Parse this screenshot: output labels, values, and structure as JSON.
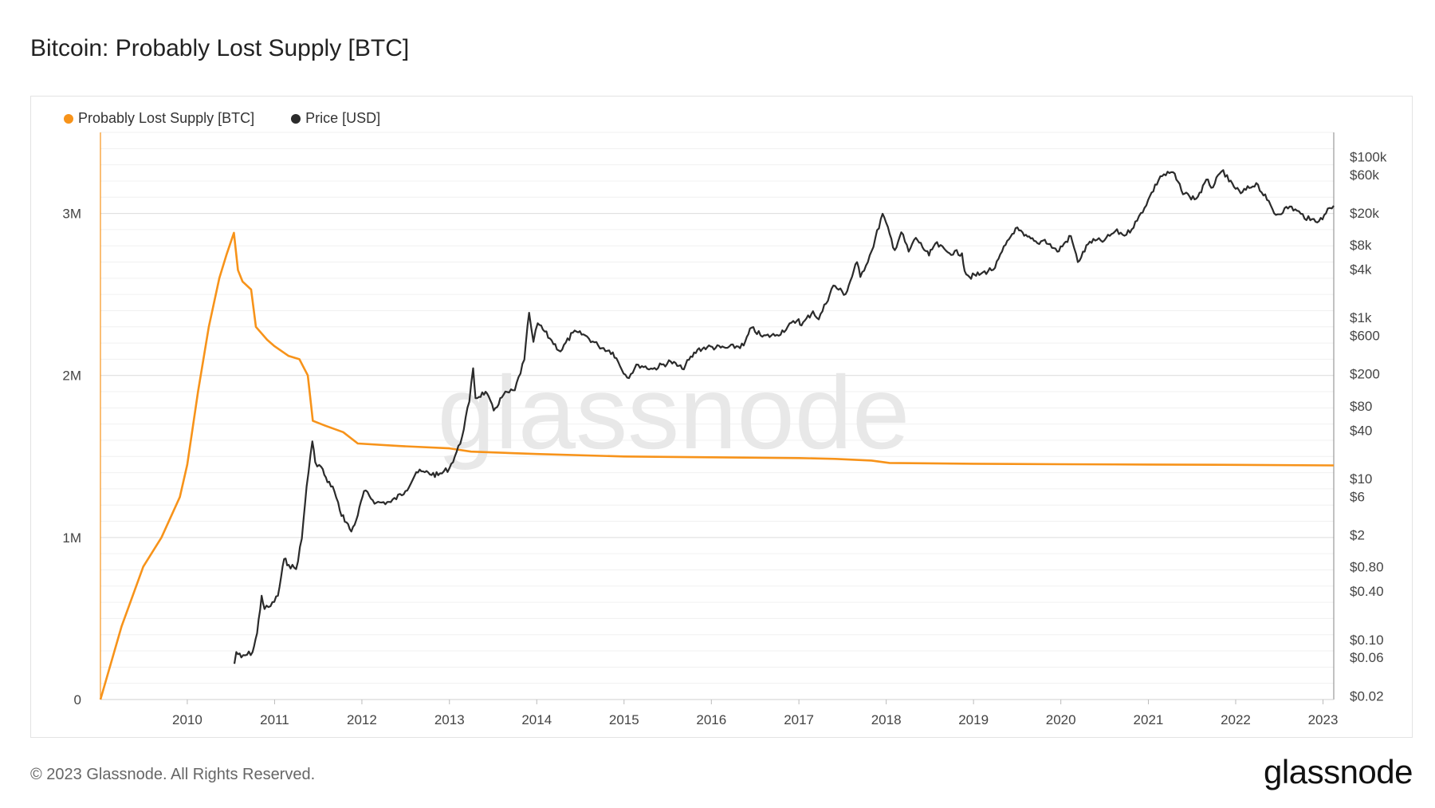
{
  "page": {
    "title": "Bitcoin: Probably Lost Supply [BTC]",
    "copyright": "© 2023 Glassnode. All Rights Reserved.",
    "brand": "glassnode",
    "watermark": "glassnode"
  },
  "colors": {
    "lost_supply": "#f7931a",
    "price": "#2b2b2b",
    "grid": "#e6e6e6",
    "axis_text": "#444444",
    "watermark": "#e8e8e8"
  },
  "chart_data": {
    "type": "line",
    "title": "Bitcoin: Probably Lost Supply [BTC]",
    "xlabel": "",
    "x_ticks": [
      "2010",
      "2011",
      "2012",
      "2013",
      "2014",
      "2015",
      "2016",
      "2017",
      "2018",
      "2019",
      "2020",
      "2021",
      "2022",
      "2023"
    ],
    "xlim": [
      "2009-01-03",
      "2023-02-15"
    ],
    "y_left": {
      "ticks": [
        0,
        1000000,
        2000000,
        3000000
      ],
      "tick_labels": [
        "0",
        "1M",
        "2M",
        "3M"
      ],
      "ylim": [
        0,
        3500000
      ]
    },
    "y_right": {
      "scale": "log",
      "ticks": [
        0.02,
        0.06,
        0.1,
        0.4,
        0.8,
        2,
        6,
        10,
        40,
        80,
        200,
        600,
        1000,
        4000,
        8000,
        20000,
        60000,
        100000
      ],
      "tick_labels": [
        "$0.02",
        "$0.06",
        "$0.10",
        "$0.40",
        "$0.80",
        "$2",
        "$6",
        "$10",
        "$40",
        "$80",
        "$200",
        "$600",
        "$1k",
        "$4k",
        "$8k",
        "$20k",
        "$60k",
        "$100k"
      ],
      "ylim": [
        0.018,
        200000
      ]
    },
    "legend": {
      "placement": "top-left"
    },
    "grid": true,
    "series": [
      {
        "name": "Probably Lost Supply [BTC]",
        "axis": "left",
        "points": [
          [
            "2009-01-03",
            0
          ],
          [
            "2009-04-01",
            450000
          ],
          [
            "2009-07-01",
            820000
          ],
          [
            "2009-09-15",
            1000000
          ],
          [
            "2009-12-01",
            1250000
          ],
          [
            "2010-01-01",
            1450000
          ],
          [
            "2010-02-15",
            1900000
          ],
          [
            "2010-04-01",
            2300000
          ],
          [
            "2010-05-15",
            2600000
          ],
          [
            "2010-06-15",
            2750000
          ],
          [
            "2010-07-15",
            2880000
          ],
          [
            "2010-08-01",
            2650000
          ],
          [
            "2010-08-20",
            2580000
          ],
          [
            "2010-09-25",
            2530000
          ],
          [
            "2010-10-15",
            2300000
          ],
          [
            "2010-12-01",
            2220000
          ],
          [
            "2011-01-01",
            2180000
          ],
          [
            "2011-03-01",
            2120000
          ],
          [
            "2011-04-15",
            2100000
          ],
          [
            "2011-05-20",
            2000000
          ],
          [
            "2011-06-10",
            1720000
          ],
          [
            "2011-08-01",
            1690000
          ],
          [
            "2011-10-15",
            1650000
          ],
          [
            "2011-12-15",
            1580000
          ],
          [
            "2012-06-01",
            1565000
          ],
          [
            "2013-01-01",
            1550000
          ],
          [
            "2013-04-01",
            1530000
          ],
          [
            "2014-01-01",
            1515000
          ],
          [
            "2015-01-01",
            1500000
          ],
          [
            "2016-01-01",
            1495000
          ],
          [
            "2017-01-01",
            1490000
          ],
          [
            "2017-06-01",
            1485000
          ],
          [
            "2017-11-01",
            1475000
          ],
          [
            "2018-01-15",
            1460000
          ],
          [
            "2019-01-01",
            1455000
          ],
          [
            "2020-01-01",
            1452000
          ],
          [
            "2021-01-01",
            1450000
          ],
          [
            "2022-01-01",
            1448000
          ],
          [
            "2023-02-15",
            1445000
          ]
        ]
      },
      {
        "name": "Price [USD]",
        "axis": "right",
        "points": [
          [
            "2010-07-17",
            0.05
          ],
          [
            "2010-07-25",
            0.07
          ],
          [
            "2010-08-15",
            0.06
          ],
          [
            "2010-10-01",
            0.07
          ],
          [
            "2010-10-20",
            0.12
          ],
          [
            "2010-11-08",
            0.35
          ],
          [
            "2010-11-20",
            0.24
          ],
          [
            "2010-12-15",
            0.26
          ],
          [
            "2011-01-15",
            0.35
          ],
          [
            "2011-02-10",
            1.0
          ],
          [
            "2011-03-01",
            0.85
          ],
          [
            "2011-04-01",
            0.75
          ],
          [
            "2011-04-25",
            1.8
          ],
          [
            "2011-05-15",
            8
          ],
          [
            "2011-06-08",
            29
          ],
          [
            "2011-06-20",
            16
          ],
          [
            "2011-07-15",
            14
          ],
          [
            "2011-08-10",
            9
          ],
          [
            "2011-09-01",
            8
          ],
          [
            "2011-10-01",
            4
          ],
          [
            "2011-11-18",
            2.2
          ],
          [
            "2011-12-15",
            3.5
          ],
          [
            "2012-01-10",
            7
          ],
          [
            "2012-03-01",
            5
          ],
          [
            "2012-05-01",
            5.1
          ],
          [
            "2012-07-01",
            7
          ],
          [
            "2012-08-15",
            12
          ],
          [
            "2012-09-20",
            12
          ],
          [
            "2012-11-15",
            11
          ],
          [
            "2013-01-01",
            13.5
          ],
          [
            "2013-02-15",
            27
          ],
          [
            "2013-03-25",
            90
          ],
          [
            "2013-04-10",
            235
          ],
          [
            "2013-04-20",
            100
          ],
          [
            "2013-06-01",
            120
          ],
          [
            "2013-07-05",
            70
          ],
          [
            "2013-08-15",
            110
          ],
          [
            "2013-10-01",
            125
          ],
          [
            "2013-11-10",
            300
          ],
          [
            "2013-11-30",
            1150
          ],
          [
            "2013-12-18",
            500
          ],
          [
            "2014-01-05",
            850
          ],
          [
            "2014-02-25",
            550
          ],
          [
            "2014-04-10",
            380
          ],
          [
            "2014-06-01",
            650
          ],
          [
            "2014-07-15",
            620
          ],
          [
            "2014-09-15",
            450
          ],
          [
            "2014-11-15",
            370
          ],
          [
            "2015-01-14",
            180
          ],
          [
            "2015-03-01",
            260
          ],
          [
            "2015-05-01",
            230
          ],
          [
            "2015-07-15",
            285
          ],
          [
            "2015-09-01",
            230
          ],
          [
            "2015-11-04",
            400
          ],
          [
            "2015-12-15",
            430
          ],
          [
            "2016-03-01",
            420
          ],
          [
            "2016-05-15",
            450
          ],
          [
            "2016-06-17",
            750
          ],
          [
            "2016-08-01",
            580
          ],
          [
            "2016-10-01",
            610
          ],
          [
            "2016-12-31",
            960
          ],
          [
            "2017-01-12",
            800
          ],
          [
            "2017-03-01",
            1200
          ],
          [
            "2017-03-25",
            950
          ],
          [
            "2017-05-25",
            2500
          ],
          [
            "2017-07-15",
            1950
          ],
          [
            "2017-09-01",
            4900
          ],
          [
            "2017-09-15",
            3200
          ],
          [
            "2017-11-01",
            6700
          ],
          [
            "2017-12-17",
            19500
          ],
          [
            "2018-02-06",
            6900
          ],
          [
            "2018-03-05",
            11500
          ],
          [
            "2018-04-05",
            6600
          ],
          [
            "2018-05-05",
            9800
          ],
          [
            "2018-06-29",
            5900
          ],
          [
            "2018-07-25",
            8300
          ],
          [
            "2018-09-15",
            6500
          ],
          [
            "2018-11-14",
            6300
          ],
          [
            "2018-11-25",
            3800
          ],
          [
            "2018-12-15",
            3200
          ],
          [
            "2019-02-01",
            3500
          ],
          [
            "2019-04-01",
            4150
          ],
          [
            "2019-05-15",
            8000
          ],
          [
            "2019-06-26",
            12900
          ],
          [
            "2019-08-01",
            10400
          ],
          [
            "2019-09-25",
            8400
          ],
          [
            "2019-10-26",
            9300
          ],
          [
            "2019-12-17",
            6600
          ],
          [
            "2020-02-12",
            10300
          ],
          [
            "2020-03-12",
            4900
          ],
          [
            "2020-05-01",
            8800
          ],
          [
            "2020-07-01",
            9100
          ],
          [
            "2020-08-15",
            11800
          ],
          [
            "2020-10-01",
            10700
          ],
          [
            "2020-11-15",
            16000
          ],
          [
            "2020-12-31",
            29000
          ],
          [
            "2021-02-20",
            57000
          ],
          [
            "2021-04-14",
            64000
          ],
          [
            "2021-05-19",
            38000
          ],
          [
            "2021-06-22",
            32000
          ],
          [
            "2021-07-20",
            30000
          ],
          [
            "2021-09-07",
            52000
          ],
          [
            "2021-09-21",
            41000
          ],
          [
            "2021-11-10",
            68000
          ],
          [
            "2021-12-04",
            49000
          ],
          [
            "2022-01-22",
            35000
          ],
          [
            "2022-03-28",
            47000
          ],
          [
            "2022-05-12",
            29000
          ],
          [
            "2022-06-18",
            18900
          ],
          [
            "2022-08-15",
            24000
          ],
          [
            "2022-09-30",
            19500
          ],
          [
            "2022-11-09",
            16200
          ],
          [
            "2022-12-30",
            16600
          ],
          [
            "2023-01-21",
            22700
          ],
          [
            "2023-02-15",
            24500
          ]
        ]
      }
    ]
  }
}
